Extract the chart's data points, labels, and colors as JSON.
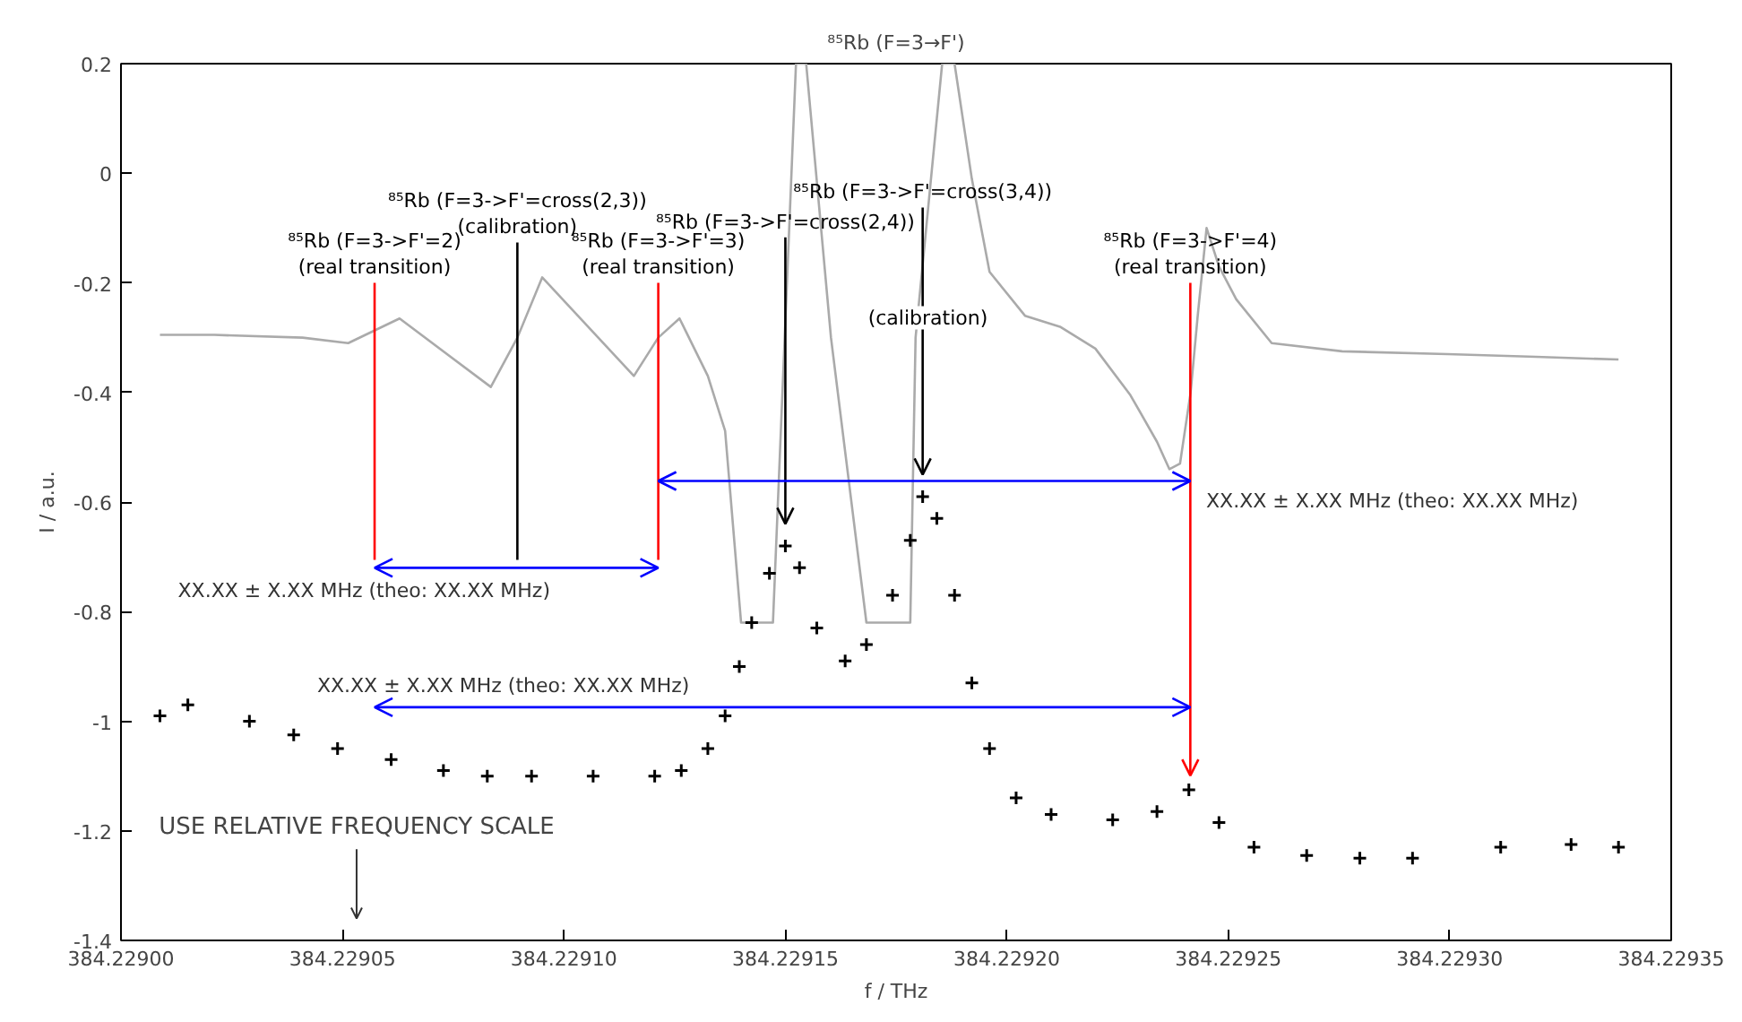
{
  "chart_data": {
    "type": "line",
    "title": "⁸⁵Rb (F=3→F')",
    "xlabel": "f / THz",
    "ylabel": "I / a.u.",
    "xlim": [
      384.229,
      384.22935
    ],
    "ylim": [
      -1.4,
      0.2
    ],
    "xticks": [
      {
        "value": 384.229,
        "label": "384.22900"
      },
      {
        "value": 384.22905,
        "label": "384.22905"
      },
      {
        "value": 384.2291,
        "label": "384.22910"
      },
      {
        "value": 384.22915,
        "label": "384.22915"
      },
      {
        "value": 384.2292,
        "label": "384.22920"
      },
      {
        "value": 384.22925,
        "label": "384.22925"
      },
      {
        "value": 384.2293,
        "label": "384.22930"
      },
      {
        "value": 384.22935,
        "label": "384.22935"
      }
    ],
    "yticks": [
      0.2,
      0,
      -0.2,
      -0.4,
      -0.6,
      -0.8,
      -1,
      -1.2,
      -1.4
    ],
    "grid": false,
    "series": [
      {
        "color": "#aaaaaa",
        "x": [
          384.2290088,
          384.2290211,
          384.229041,
          384.2290513,
          384.2290629,
          384.2290835,
          384.2290895,
          384.2290951,
          384.2291158,
          384.2291213,
          384.2291261,
          384.2291325,
          384.2291364,
          384.22914,
          384.2291472,
          384.2291524,
          384.2291547,
          384.2291603,
          384.2291683,
          384.2291782,
          384.2291794,
          384.2291854,
          384.2291882,
          384.2291921,
          384.2291961,
          384.2292041,
          384.229212,
          384.22922,
          384.2292279,
          384.2292339,
          384.2292367,
          384.2292391,
          384.2292415,
          384.2292431,
          384.2292451,
          384.2292479,
          384.2292518,
          384.2292598,
          384.2292757,
          384.2292995,
          384.2293194,
          384.2293381
        ],
        "values": [
          -0.295,
          -0.295,
          -0.3,
          -0.31,
          -0.265,
          -0.39,
          -0.3,
          -0.19,
          -0.37,
          -0.3,
          -0.265,
          -0.37,
          -0.47,
          -0.82,
          -0.82,
          0.2,
          0.2,
          -0.3,
          -0.82,
          -0.82,
          -0.3,
          0.2,
          0.2,
          -0.01,
          -0.18,
          -0.26,
          -0.28,
          -0.32,
          -0.405,
          -0.49,
          -0.54,
          -0.53,
          -0.4,
          -0.26,
          -0.1,
          -0.17,
          -0.23,
          -0.31,
          -0.325,
          -0.33,
          -0.335,
          -0.34
        ]
      },
      {
        "type": "scatter",
        "marker": "cross",
        "color": "#000000",
        "x": [
          384.2290088,
          384.2290151,
          384.229029,
          384.229039,
          384.2290489,
          384.229061,
          384.2290728,
          384.2290827,
          384.2290927,
          384.2291066,
          384.2291205,
          384.2291265,
          384.2291325,
          384.2291364,
          384.2291396,
          384.2291424,
          384.2291464,
          384.22915,
          384.2291532,
          384.2291571,
          384.2291635,
          384.2291683,
          384.2291742,
          384.2291782,
          384.229181,
          384.2291842,
          384.2291882,
          384.2291921,
          384.2291961,
          384.2292021,
          384.22921,
          384.2292239,
          384.2292339,
          384.2292411,
          384.2292479,
          384.2292558,
          384.2292677,
          384.2292797,
          384.2292916,
          384.2293115,
          384.2293274,
          384.2293381
        ],
        "values": [
          -0.99,
          -0.97,
          -1.0,
          -1.025,
          -1.05,
          -1.07,
          -1.09,
          -1.1,
          -1.1,
          -1.1,
          -1.1,
          -1.09,
          -1.05,
          -0.99,
          -0.9,
          -0.82,
          -0.73,
          -0.68,
          -0.72,
          -0.83,
          -0.89,
          -0.86,
          -0.77,
          -0.67,
          -0.59,
          -0.63,
          -0.77,
          -0.93,
          -1.05,
          -1.14,
          -1.17,
          -1.18,
          -1.165,
          -1.125,
          -1.185,
          -1.23,
          -1.245,
          -1.25,
          -1.25,
          -1.23,
          -1.225,
          -1.23
        ]
      }
    ],
    "annotations": [
      "⁸⁵Rb (F=3->F'=2)\n(real transition)",
      "⁸⁵Rb (F=3->F'=cross(2,3))\n(calibration)",
      "⁸⁵Rb (F=3->F'=3)\n(real transition)",
      {
        "text": "⁸⁵Rb (F=3->F'=cross(2,4))",
        "x": 384.22915,
        "y": -0.64
      },
      {
        "text": "⁸⁵Rb (F=3->F'=cross(3,4))",
        "x": 384.229181,
        "y": -0.55
      },
      "⁸⁵Rb (F=3->F'=4)\n(real transition)",
      "(calibration)",
      "XX.XX ± X.XX MHz (theo: XX.XX MHz)",
      "XX.XX ± X.XX MHz (theo: XX.XX MHz)",
      "XX.XX ± X.XX MHz (theo: XX.XX MHz)",
      "USE RELATIVE FREQUENCY SCALE"
    ]
  }
}
